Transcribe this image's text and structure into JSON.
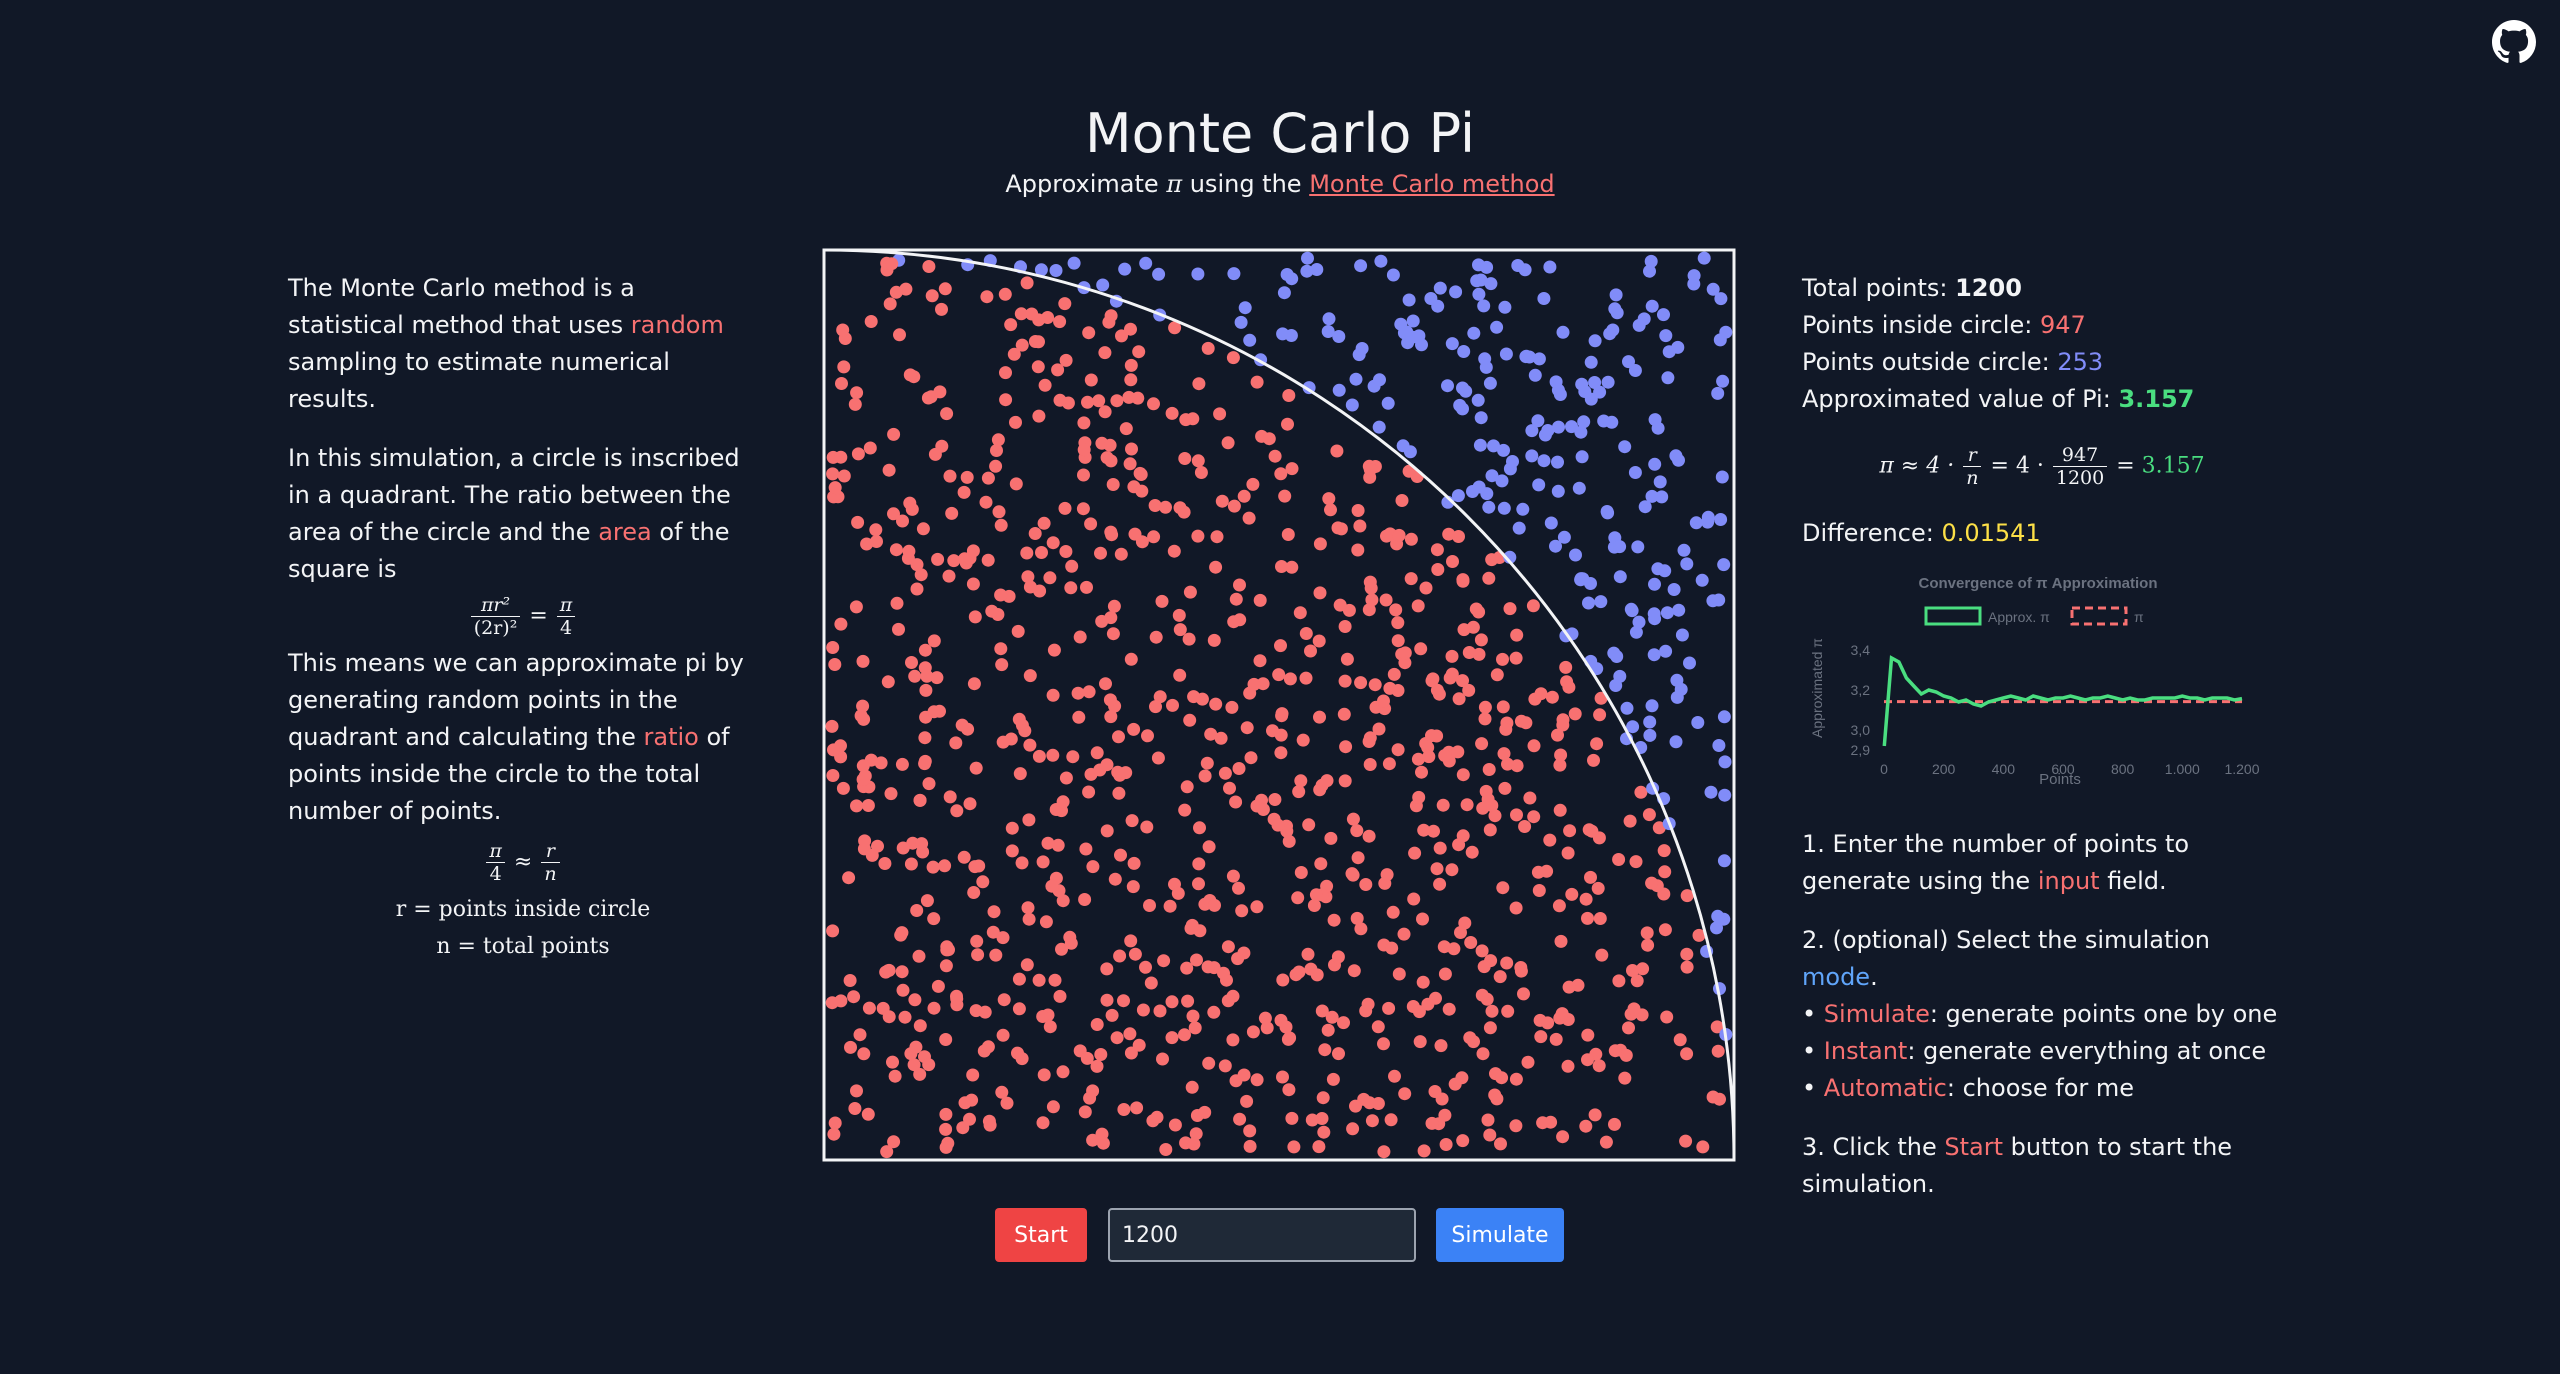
{
  "header": {
    "title": "Monte Carlo Pi",
    "subtitle_prefix": "Approximate ",
    "subtitle_pi": "π",
    "subtitle_mid": " using the ",
    "subtitle_link": "Monte Carlo method"
  },
  "explanation": {
    "p1_a": "The Monte Carlo method is a statistical method that uses ",
    "p1_highlight": "random",
    "p1_b": " sampling to estimate numerical results.",
    "p2_a": "In this simulation, a circle is inscribed in a quadrant. The ratio between the area of the circle and the ",
    "p2_highlight": "area",
    "p2_b": " of the square is",
    "area_formula": {
      "num_left": "πr²",
      "den_left": "(2r)²",
      "eq": "=",
      "num_right": "π",
      "den_right": "4"
    },
    "p3_a": "This means we can approximate pi by generating random points in the quadrant and calculating the ",
    "p3_highlight": "ratio",
    "p3_b": " of points inside the circle to the total number of points.",
    "ratio_formula": {
      "num_left": "π",
      "den_left": "4",
      "approx": "≈",
      "num_right": "r",
      "den_right": "n"
    },
    "def_r": "r = points inside circle",
    "def_n": "n = total points"
  },
  "stats": {
    "total_label": "Total points: ",
    "total_value": "1200",
    "inside_label": "Points inside circle: ",
    "inside_value": "947",
    "outside_label": "Points outside circle: ",
    "outside_value": "253",
    "approx_label": "Approximated value of Pi: ",
    "approx_value": "3.157",
    "formula": {
      "lhs": "π ≈ 4 · ",
      "r": "r",
      "n": "n",
      "mid": " = 4 · ",
      "num": "947",
      "den": "1200",
      "eq": " = ",
      "result": "3.157"
    },
    "difference_label": "Difference: ",
    "difference_value": "0.01541"
  },
  "colors": {
    "background": "#111827",
    "inside_point": "#f87171",
    "outside_point": "#818cf8",
    "approx_line": "#4ade80",
    "pi_line": "#f87171"
  },
  "chart_data": {
    "type": "line",
    "title": "Convergence of π Approximation",
    "xlabel": "Points",
    "ylabel": "Approximated π",
    "x_ticks": [
      "0",
      "200",
      "400",
      "600",
      "800",
      "1.000",
      "1.200"
    ],
    "y_ticks": [
      "3,4",
      "3,2",
      "3,0",
      "2,9"
    ],
    "xlim": [
      0,
      1200
    ],
    "ylim": [
      2.9,
      3.45
    ],
    "legend": [
      "Approx. π",
      "π"
    ],
    "series": [
      {
        "name": "Approx. π",
        "x": [
          1,
          25,
          50,
          75,
          100,
          125,
          150,
          175,
          200,
          225,
          250,
          275,
          300,
          325,
          350,
          375,
          400,
          425,
          450,
          475,
          500,
          525,
          550,
          575,
          600,
          625,
          650,
          675,
          700,
          725,
          750,
          775,
          800,
          825,
          850,
          875,
          900,
          925,
          950,
          975,
          1000,
          1025,
          1050,
          1075,
          1100,
          1125,
          1150,
          1175,
          1200
        ],
        "y": [
          2.92,
          3.36,
          3.34,
          3.26,
          3.22,
          3.18,
          3.2,
          3.19,
          3.17,
          3.16,
          3.14,
          3.15,
          3.13,
          3.12,
          3.14,
          3.15,
          3.16,
          3.17,
          3.16,
          3.15,
          3.17,
          3.16,
          3.15,
          3.16,
          3.16,
          3.17,
          3.16,
          3.15,
          3.16,
          3.16,
          3.17,
          3.16,
          3.15,
          3.16,
          3.15,
          3.15,
          3.16,
          3.16,
          3.16,
          3.16,
          3.17,
          3.16,
          3.16,
          3.15,
          3.16,
          3.16,
          3.16,
          3.15,
          3.157
        ]
      },
      {
        "name": "π",
        "x": [
          0,
          1200
        ],
        "y": [
          3.14159,
          3.14159
        ]
      }
    ]
  },
  "simulation": {
    "total": 1200,
    "inside": 947,
    "outside": 253
  },
  "instructions": {
    "step1_a": "1. Enter the number of points to generate using the ",
    "step1_highlight": "input",
    "step1_b": " field.",
    "step2_a": "2. (optional) Select the simulation ",
    "step2_highlight": "mode",
    "step2_b": ".",
    "mode_simulate": "Simulate",
    "mode_simulate_desc": ": generate points one by one",
    "mode_instant": "Instant",
    "mode_instant_desc": ": generate everything at once",
    "mode_automatic": "Automatic",
    "mode_automatic_desc": ": choose for me",
    "step3_a": "3. Click the ",
    "step3_highlight": "Start",
    "step3_b": " button to start the simulation."
  },
  "controls": {
    "start_label": "Start",
    "points_value": "1200",
    "mode_label": "Simulate"
  },
  "icons": {
    "github": "github-icon"
  }
}
